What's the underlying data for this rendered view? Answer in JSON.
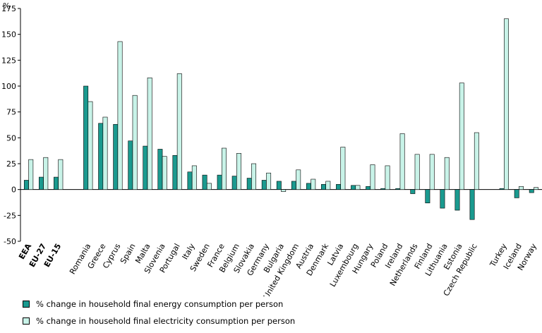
{
  "chart_data": {
    "type": "bar",
    "ylabel": "%",
    "ylim": [
      -50,
      175
    ],
    "yticks": [
      -50,
      -25,
      0,
      25,
      50,
      75,
      100,
      125,
      150,
      175
    ],
    "legend_position": "bottom-left",
    "colors": {
      "energy": "#1a9a8f",
      "electricity": "#c8f3e8"
    },
    "groups": [
      {
        "categories": [
          {
            "name": "EEA",
            "bold": true
          },
          {
            "name": "EU-27",
            "bold": true
          },
          {
            "name": "EU-15",
            "bold": true
          }
        ]
      },
      {
        "categories": [
          {
            "name": "Romania"
          },
          {
            "name": "Greece"
          },
          {
            "name": "Cyprus"
          },
          {
            "name": "Spain"
          },
          {
            "name": "Malta"
          },
          {
            "name": "Slovenia"
          },
          {
            "name": "Portugal"
          },
          {
            "name": "Italy"
          },
          {
            "name": "Sweden"
          },
          {
            "name": "France"
          },
          {
            "name": "Belgium"
          },
          {
            "name": "Slovakia"
          },
          {
            "name": "Germany"
          },
          {
            "name": "Bulgaria"
          },
          {
            "name": "United Kingdom"
          },
          {
            "name": "Austria"
          },
          {
            "name": "Denmark"
          },
          {
            "name": "Latvia"
          },
          {
            "name": "Luxembourg"
          },
          {
            "name": "Hungary"
          },
          {
            "name": "Poland"
          },
          {
            "name": "Ireland"
          },
          {
            "name": "Netherlands"
          },
          {
            "name": "Finland"
          },
          {
            "name": "Lithuania"
          },
          {
            "name": "Estonia"
          },
          {
            "name": "Czech Republic"
          }
        ]
      },
      {
        "categories": [
          {
            "name": "Turkey"
          },
          {
            "name": "Iceland"
          },
          {
            "name": "Norway"
          }
        ]
      }
    ],
    "series": [
      {
        "name": "% change in household final energy consumption per person",
        "values": [
          9,
          12,
          12,
          100,
          64,
          63,
          47,
          42,
          39,
          33,
          17,
          14,
          14,
          13,
          11,
          9,
          8,
          8,
          6,
          5,
          5,
          4,
          3,
          1,
          1,
          -4,
          -13,
          -18,
          -20,
          -29,
          1,
          -8,
          -3
        ]
      },
      {
        "name": "% change in household final electricity consumption per person",
        "values": [
          29,
          31,
          29,
          85,
          70,
          143,
          91,
          108,
          32,
          112,
          23,
          6,
          40,
          35,
          25,
          16,
          -2,
          19,
          10,
          8,
          41,
          4,
          24,
          23,
          54,
          34,
          34,
          31,
          103,
          55,
          165,
          3,
          2
        ]
      }
    ]
  }
}
